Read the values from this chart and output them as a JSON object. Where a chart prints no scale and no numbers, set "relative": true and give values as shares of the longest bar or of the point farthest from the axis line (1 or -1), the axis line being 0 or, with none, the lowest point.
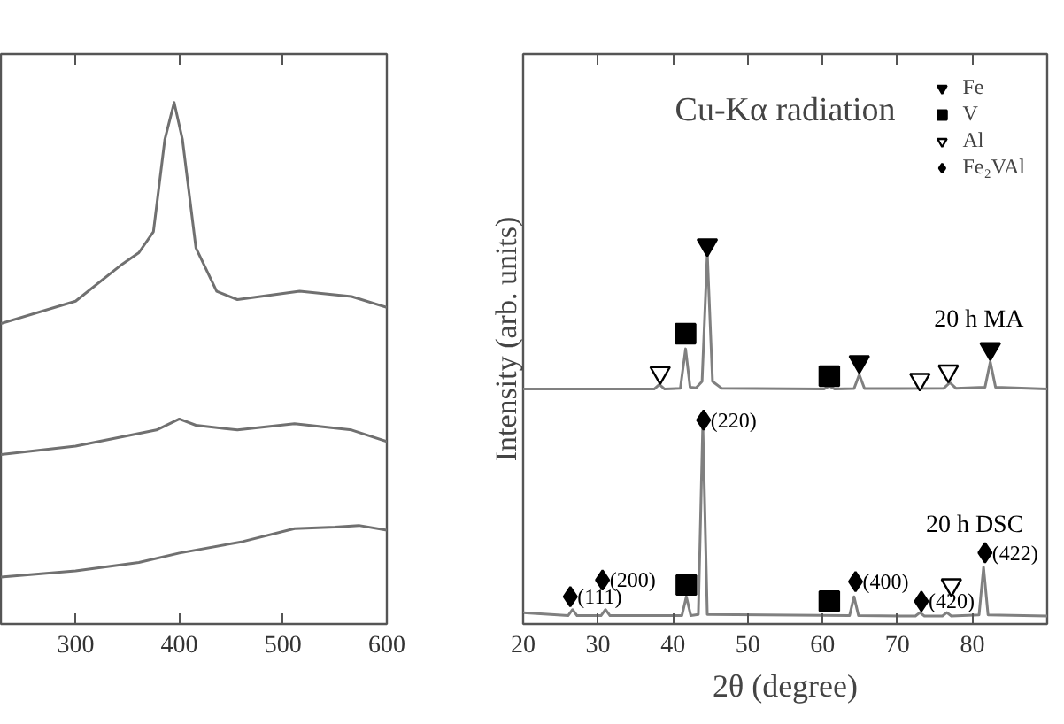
{
  "chart_data": [
    {
      "type": "line",
      "relative": true,
      "xlim": [
        228,
        600
      ],
      "xticks": [
        300,
        400,
        500,
        600
      ],
      "tick_labels": "x",
      "series": [
        {
          "color": "#707070",
          "x": [
            228,
            300,
            345,
            361,
            375,
            386,
            395,
            403,
            416,
            436,
            456,
            516,
            566,
            600
          ],
          "values": [
            0.576,
            0.619,
            0.69,
            0.712,
            0.752,
            0.929,
            1.0,
            0.929,
            0.721,
            0.638,
            0.622,
            0.638,
            0.628,
            0.607
          ]
        },
        {
          "color": "#707070",
          "x": [
            228,
            300,
            345,
            378,
            400,
            416,
            456,
            511,
            566,
            600
          ],
          "values": [
            0.325,
            0.341,
            0.359,
            0.372,
            0.393,
            0.381,
            0.372,
            0.384,
            0.372,
            0.35
          ]
        },
        {
          "color": "#707070",
          "x": [
            228,
            300,
            361,
            400,
            461,
            511,
            550,
            573,
            600
          ],
          "values": [
            0.09,
            0.102,
            0.118,
            0.136,
            0.158,
            0.183,
            0.186,
            0.189,
            0.18
          ]
        }
      ]
    },
    {
      "type": "line",
      "relative": true,
      "title": "Cu-Kα radiation",
      "xlabel": "2θ (degree)",
      "ylabel": "Intensity (arb. units)",
      "xlim": [
        20,
        90
      ],
      "xticks": [
        20,
        30,
        40,
        50,
        60,
        70,
        80
      ],
      "tick_labels": "x",
      "legend": "top right",
      "series": [
        {
          "color": "#808080",
          "x": [
            20,
            37.5,
            38.2,
            38.9,
            41.0,
            41.7,
            42.3,
            43.1,
            43.9,
            44.6,
            45.3,
            46.5,
            60.2,
            60.9,
            61.6,
            64.2,
            64.9,
            65.6,
            76.2,
            77.0,
            77.8,
            81.7,
            82.4,
            83.1,
            90
          ],
          "values": [
            0.62,
            0.62,
            0.632,
            0.62,
            0.622,
            0.726,
            0.625,
            0.623,
            0.64,
            0.979,
            0.64,
            0.622,
            0.62,
            0.628,
            0.62,
            0.621,
            0.658,
            0.621,
            0.622,
            0.637,
            0.622,
            0.625,
            0.692,
            0.625,
            0.62
          ]
        },
        {
          "color": "#808080",
          "x": [
            20,
            26.0,
            26.6,
            27.2,
            30.4,
            31.0,
            31.6,
            41.2,
            41.8,
            42.4,
            43.4,
            44.0,
            44.6,
            63.6,
            64.2,
            64.8,
            72.4,
            73.0,
            73.6,
            76.0,
            76.6,
            77.2,
            80.9,
            81.5,
            82.1,
            90
          ],
          "values": [
            0.03,
            0.022,
            0.038,
            0.022,
            0.022,
            0.038,
            0.022,
            0.022,
            0.072,
            0.022,
            0.025,
            0.53,
            0.025,
            0.022,
            0.072,
            0.022,
            0.021,
            0.03,
            0.021,
            0.021,
            0.03,
            0.021,
            0.024,
            0.15,
            0.024,
            0.021
          ]
        },
        {
          "name": "Fe",
          "type": "scatter",
          "marker": "triangle_down",
          "color": "#000000",
          "x": [
            44.6,
            64.9,
            82.4
          ],
          "values": [
            1.0,
            0.692,
            0.726
          ]
        },
        {
          "name": "V",
          "type": "scatter",
          "marker": "square",
          "color": "#000000",
          "x": [
            41.7,
            60.9,
            41.8,
            60.9
          ],
          "values": [
            0.766,
            0.654,
            0.103,
            0.06
          ]
        },
        {
          "name": "Al",
          "type": "scatter",
          "marker": "triangle_down",
          "color": "#ffffff",
          "x": [
            38.3,
            73.0,
            76.8,
            77.2
          ],
          "values": [
            0.663,
            0.645,
            0.667,
            0.103
          ]
        },
        {
          "name": "Fe₂VAl",
          "type": "scatter",
          "marker": "diamond",
          "color": "#000000",
          "x": [
            26.3,
            30.6,
            44.1,
            64.4,
            73.2,
            81.7
          ],
          "values": [
            0.072,
            0.116,
            0.538,
            0.112,
            0.06,
            0.188
          ]
        }
      ],
      "annotations": [
        "20 h MA",
        "20 h DSC",
        {
          "text": "(111)",
          "x": 26.3,
          "y": 0.072
        },
        {
          "text": "(200)",
          "x": 30.6,
          "y": 0.116
        },
        {
          "text": "(220)",
          "x": 44.1,
          "y": 0.538
        },
        {
          "text": "(400)",
          "x": 64.4,
          "y": 0.112
        },
        {
          "text": "(420)",
          "x": 73.2,
          "y": 0.06
        },
        {
          "text": "(422)",
          "x": 81.7,
          "y": 0.188
        }
      ]
    }
  ]
}
